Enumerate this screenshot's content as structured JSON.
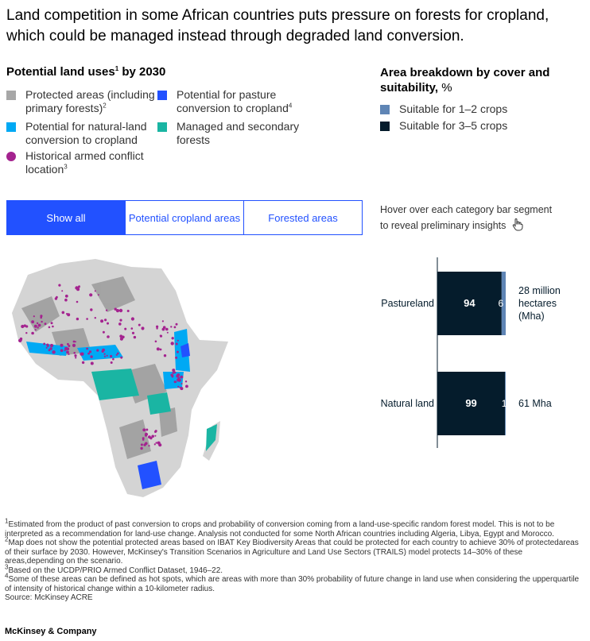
{
  "title": "Land competition in some African countries puts pressure on forests for cropland, which could be managed instead through degraded land conversion.",
  "legend": {
    "heading": "Potential land uses",
    "heading_sup": "1",
    "heading_suffix": " by 2030",
    "items": [
      {
        "line1": "Protected areas (including",
        "line2": "primary forests)",
        "sup": "2",
        "color": "#a7a7a7",
        "shape": "square"
      },
      {
        "line1": "Potential for natural-land",
        "line2": "conversion to cropland",
        "sup": "",
        "color": "#00a9f4",
        "shape": "square"
      },
      {
        "line1": "Historical armed conflict",
        "line2": "location",
        "sup": "3",
        "color": "#a4238f",
        "shape": "circle"
      },
      {
        "line1": "Potential for pasture",
        "line2": "conversion to cropland",
        "sup": "4",
        "color": "#2251ff",
        "shape": "square"
      },
      {
        "line1": "Managed and secondary",
        "line2": "forests",
        "sup": "",
        "color": "#1ab5a3",
        "shape": "square"
      }
    ]
  },
  "breakdown": {
    "heading_bold": "Area breakdown by cover and suitability,",
    "heading_unit": " %",
    "items": [
      {
        "label": "Suitable for 1–2 crops",
        "color": "#5f85b5"
      },
      {
        "label": "Suitable for 3–5 crops",
        "color": "#051c2c"
      }
    ]
  },
  "tabs": [
    {
      "label": "Show all",
      "active": true
    },
    {
      "label": "Potential cropland areas",
      "active": false
    },
    {
      "label": "Forested areas",
      "active": false
    }
  ],
  "hover_note": {
    "line1": "Hover over each category bar segment",
    "line2": "to reveal preliminary insights"
  },
  "chart_data": {
    "type": "bar",
    "orientation": "horizontal",
    "stacked": true,
    "categories": [
      "Pastureland",
      "Natural land"
    ],
    "series": [
      {
        "name": "Suitable for 3–5 crops",
        "values": [
          94,
          99
        ],
        "color": "#051c2c"
      },
      {
        "name": "Suitable for 1–2 crops",
        "values": [
          6,
          1
        ],
        "color": "#5f85b5"
      }
    ],
    "totals": [
      {
        "line1": "28 million",
        "line2": "hectares",
        "line3": "(Mha)"
      },
      {
        "line1": "61 Mha",
        "line2": "",
        "line3": ""
      }
    ],
    "xlim": [
      0,
      100
    ]
  },
  "footnotes": [
    {
      "sup": "1",
      "text": "Estimated from the product of past conversion to crops and probability of conversion coming from a land-use-specific random forest model. This is not to be interpreted as a recommendation for land-use change. Analysis not conducted for some North African countries including Algeria, Libya, Egypt and Morocco."
    },
    {
      "sup": "2",
      "text": "Map does not show the potential protected areas based on IBAT Key Biodiversity Areas that could be protected for each country to achieve 30% of protectedareas of their surface by 2030. However, McKinsey's Transition Scenarios in Agriculture and Land Use Sectors (TRAILS) model protects 14–30% of these areas,depending on the scenario."
    },
    {
      "sup": "3",
      "text": "Based on the UCDP/PRIO Armed Conflict Dataset, 1946–22."
    },
    {
      "sup": "4",
      "text": "Some of these areas can be defined as hot spots, which are areas with more than 30% probability of future change in land use when considering the upperquartile of intensity of historical change within a 10-kilometer radius."
    }
  ],
  "source": "Source: McKinsey ACRE",
  "brand": "McKinsey & Company"
}
